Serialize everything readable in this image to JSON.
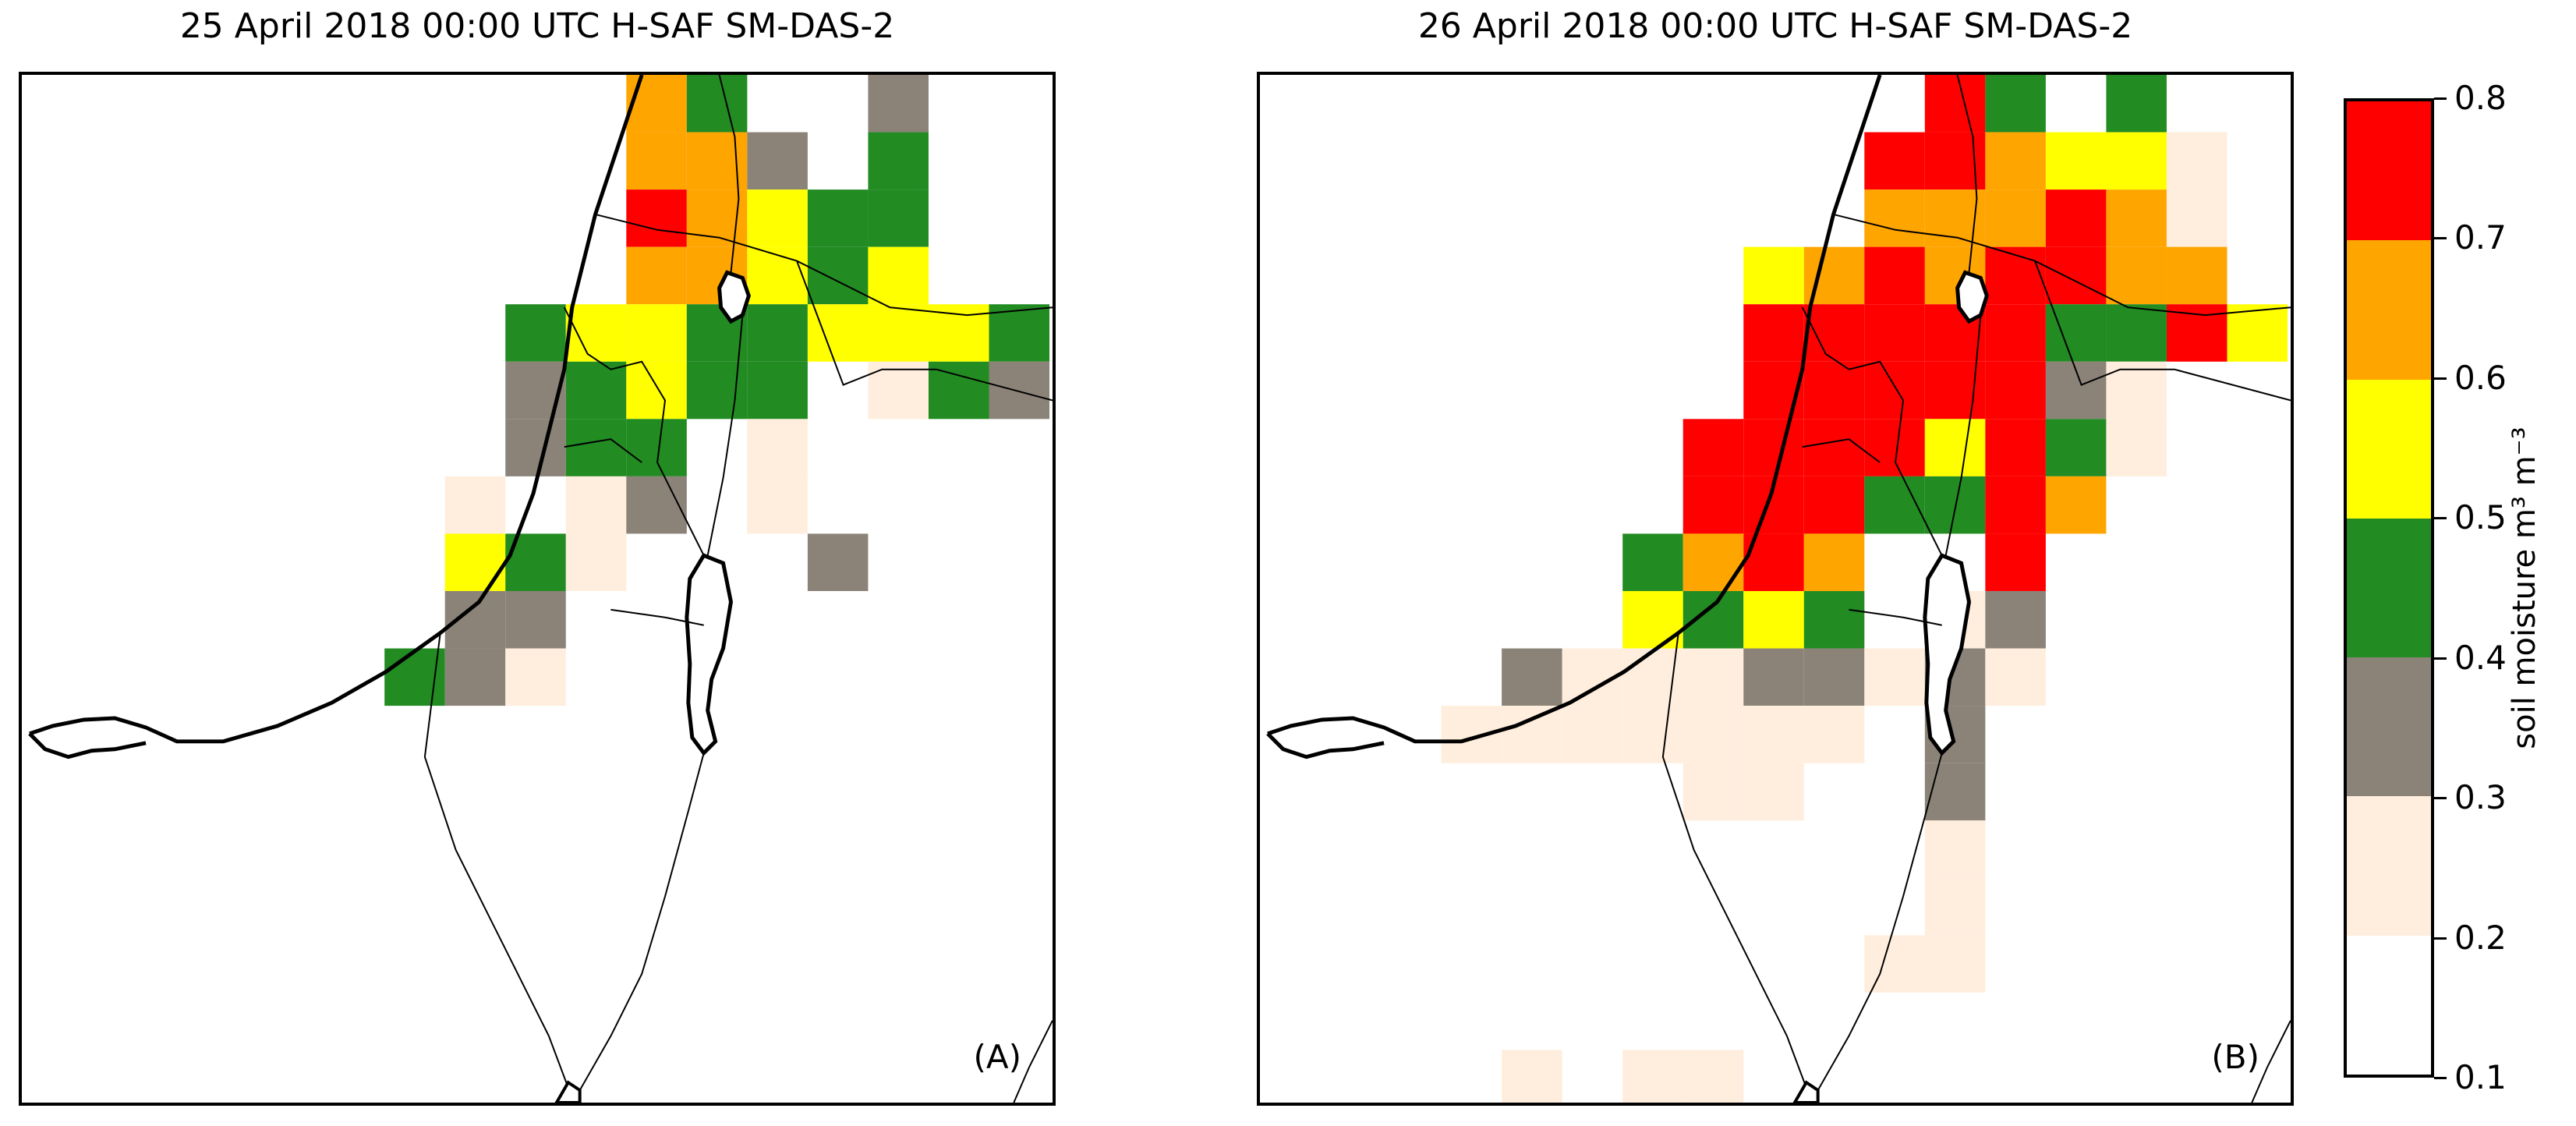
{
  "panels": [
    {
      "title": "25 April 2018 00:00 UTC H-SAF SM-DAS-2",
      "label": "(A)",
      "cells": [
        [
          10,
          0,
          "o"
        ],
        [
          11,
          0,
          "g"
        ],
        [
          14,
          0,
          "k"
        ],
        [
          10,
          1,
          "o"
        ],
        [
          11,
          1,
          "o"
        ],
        [
          12,
          1,
          "k"
        ],
        [
          14,
          1,
          "g"
        ],
        [
          10,
          2,
          "r"
        ],
        [
          11,
          2,
          "o"
        ],
        [
          12,
          2,
          "y"
        ],
        [
          13,
          2,
          "g"
        ],
        [
          14,
          2,
          "g"
        ],
        [
          10,
          3,
          "o"
        ],
        [
          11,
          3,
          "o"
        ],
        [
          12,
          3,
          "y"
        ],
        [
          13,
          3,
          "g"
        ],
        [
          14,
          3,
          "y"
        ],
        [
          8,
          4,
          "g"
        ],
        [
          9,
          4,
          "y"
        ],
        [
          10,
          4,
          "y"
        ],
        [
          11,
          4,
          "g"
        ],
        [
          12,
          4,
          "g"
        ],
        [
          13,
          4,
          "y"
        ],
        [
          14,
          4,
          "y"
        ],
        [
          15,
          4,
          "y"
        ],
        [
          16,
          4,
          "g"
        ],
        [
          8,
          5,
          "k"
        ],
        [
          9,
          5,
          "g"
        ],
        [
          10,
          5,
          "y"
        ],
        [
          11,
          5,
          "g"
        ],
        [
          12,
          5,
          "g"
        ],
        [
          14,
          5,
          "p"
        ],
        [
          15,
          5,
          "g"
        ],
        [
          16,
          5,
          "k"
        ],
        [
          8,
          6,
          "k"
        ],
        [
          9,
          6,
          "g"
        ],
        [
          10,
          6,
          "g"
        ],
        [
          12,
          6,
          "p"
        ],
        [
          7,
          7,
          "p"
        ],
        [
          9,
          7,
          "p"
        ],
        [
          10,
          7,
          "k"
        ],
        [
          12,
          7,
          "p"
        ],
        [
          7,
          8,
          "y"
        ],
        [
          8,
          8,
          "g"
        ],
        [
          9,
          8,
          "p"
        ],
        [
          13,
          8,
          "k"
        ],
        [
          7,
          9,
          "k"
        ],
        [
          8,
          9,
          "k"
        ],
        [
          6,
          10,
          "g"
        ],
        [
          7,
          10,
          "k"
        ],
        [
          8,
          10,
          "p"
        ]
      ]
    },
    {
      "title": "26 April 2018 00:00 UTC H-SAF SM-DAS-2",
      "label": "(B)",
      "cells": [
        [
          11,
          0,
          "r"
        ],
        [
          12,
          0,
          "g"
        ],
        [
          14,
          0,
          "g"
        ],
        [
          10,
          1,
          "r"
        ],
        [
          11,
          1,
          "r"
        ],
        [
          12,
          1,
          "o"
        ],
        [
          13,
          1,
          "y"
        ],
        [
          14,
          1,
          "y"
        ],
        [
          15,
          1,
          "p"
        ],
        [
          10,
          2,
          "o"
        ],
        [
          11,
          2,
          "o"
        ],
        [
          12,
          2,
          "o"
        ],
        [
          13,
          2,
          "r"
        ],
        [
          14,
          2,
          "o"
        ],
        [
          15,
          2,
          "p"
        ],
        [
          8,
          3,
          "y"
        ],
        [
          9,
          3,
          "o"
        ],
        [
          10,
          3,
          "r"
        ],
        [
          11,
          3,
          "o"
        ],
        [
          12,
          3,
          "r"
        ],
        [
          13,
          3,
          "r"
        ],
        [
          14,
          3,
          "o"
        ],
        [
          15,
          3,
          "o"
        ],
        [
          8,
          4,
          "r"
        ],
        [
          9,
          4,
          "r"
        ],
        [
          10,
          4,
          "r"
        ],
        [
          11,
          4,
          "r"
        ],
        [
          12,
          4,
          "r"
        ],
        [
          13,
          4,
          "g"
        ],
        [
          14,
          4,
          "g"
        ],
        [
          15,
          4,
          "r"
        ],
        [
          16,
          4,
          "y"
        ],
        [
          8,
          5,
          "r"
        ],
        [
          9,
          5,
          "r"
        ],
        [
          10,
          5,
          "r"
        ],
        [
          11,
          5,
          "r"
        ],
        [
          12,
          5,
          "r"
        ],
        [
          13,
          5,
          "k"
        ],
        [
          14,
          5,
          "p"
        ],
        [
          7,
          6,
          "r"
        ],
        [
          8,
          6,
          "r"
        ],
        [
          9,
          6,
          "r"
        ],
        [
          10,
          6,
          "r"
        ],
        [
          11,
          6,
          "y"
        ],
        [
          12,
          6,
          "r"
        ],
        [
          13,
          6,
          "g"
        ],
        [
          14,
          6,
          "p"
        ],
        [
          7,
          7,
          "r"
        ],
        [
          8,
          7,
          "r"
        ],
        [
          9,
          7,
          "r"
        ],
        [
          10,
          7,
          "g"
        ],
        [
          11,
          7,
          "g"
        ],
        [
          12,
          7,
          "r"
        ],
        [
          13,
          7,
          "o"
        ],
        [
          6,
          8,
          "g"
        ],
        [
          7,
          8,
          "o"
        ],
        [
          8,
          8,
          "r"
        ],
        [
          9,
          8,
          "o"
        ],
        [
          12,
          8,
          "r"
        ],
        [
          6,
          9,
          "y"
        ],
        [
          7,
          9,
          "g"
        ],
        [
          8,
          9,
          "y"
        ],
        [
          9,
          9,
          "g"
        ],
        [
          11,
          9,
          "p"
        ],
        [
          12,
          9,
          "k"
        ],
        [
          4,
          10,
          "k"
        ],
        [
          5,
          10,
          "p"
        ],
        [
          6,
          10,
          "p"
        ],
        [
          7,
          10,
          "p"
        ],
        [
          8,
          10,
          "k"
        ],
        [
          9,
          10,
          "k"
        ],
        [
          10,
          10,
          "p"
        ],
        [
          11,
          10,
          "k"
        ],
        [
          12,
          10,
          "p"
        ],
        [
          3,
          11,
          "p"
        ],
        [
          4,
          11,
          "p"
        ],
        [
          5,
          11,
          "p"
        ],
        [
          6,
          11,
          "p"
        ],
        [
          7,
          11,
          "p"
        ],
        [
          8,
          11,
          "p"
        ],
        [
          9,
          11,
          "p"
        ],
        [
          11,
          11,
          "k"
        ],
        [
          7,
          12,
          "p"
        ],
        [
          8,
          12,
          "p"
        ],
        [
          11,
          12,
          "k"
        ],
        [
          11,
          13,
          "p"
        ],
        [
          11,
          14,
          "p"
        ],
        [
          10,
          15,
          "p"
        ],
        [
          11,
          15,
          "p"
        ],
        [
          4,
          17,
          "p"
        ],
        [
          6,
          17,
          "p"
        ],
        [
          7,
          17,
          "p"
        ]
      ]
    }
  ],
  "colorbar": {
    "label": "soil moisture m³ m⁻³",
    "ticks": [
      "0.8",
      "0.7",
      "0.6",
      "0.5",
      "0.4",
      "0.3",
      "0.2",
      "0.1"
    ],
    "bins": [
      {
        "min": 0.7,
        "max": 0.8,
        "key": "r",
        "color": "#ff0000"
      },
      {
        "min": 0.6,
        "max": 0.7,
        "key": "o",
        "color": "#ffa500"
      },
      {
        "min": 0.5,
        "max": 0.6,
        "key": "y",
        "color": "#ffff00"
      },
      {
        "min": 0.4,
        "max": 0.5,
        "key": "g",
        "color": "#228b22"
      },
      {
        "min": 0.3,
        "max": 0.4,
        "key": "k",
        "color": "#8b8378"
      },
      {
        "min": 0.2,
        "max": 0.3,
        "key": "p",
        "color": "#ffeedd"
      },
      {
        "min": 0.1,
        "max": 0.2,
        "key": "w",
        "color": "#ffffff"
      }
    ]
  }
}
